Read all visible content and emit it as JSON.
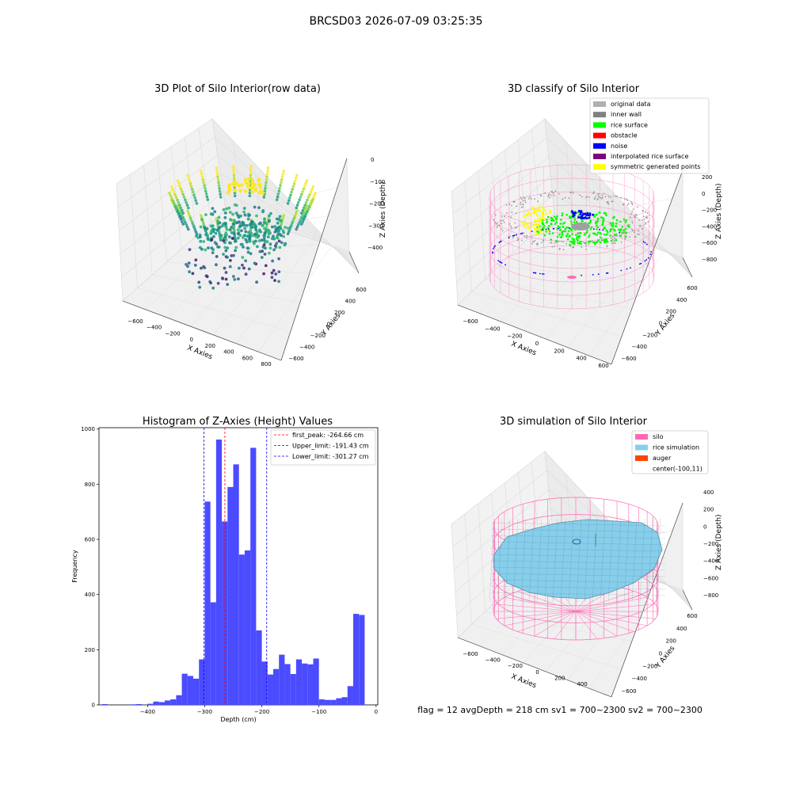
{
  "figure": {
    "suptitle": "BRCSD03 2026-07-09 03:25:35",
    "footer": "flag = 12   avgDepth = 218 cm  sv1 = 700~2300  sv2 = 700~2300"
  },
  "colors": {
    "hist_bar": "#4b4bff",
    "first_peak": "#ff0000",
    "limits": "#0000ff",
    "silo": "#ff69b4",
    "rice_simulation": "#87ceeb",
    "auger": "#ff4500",
    "original_data": "#b0b0b0",
    "inner_wall": "#808080",
    "rice_surface": "#00ff00",
    "obstacle": "#ff0000",
    "noise": "#0000ff",
    "interpolated_rice_surface": "#800080",
    "symmetric_generated_points": "#ffff00"
  },
  "panels": {
    "raw": {
      "title": "3D Plot of Silo Interior(row data)",
      "xlabel": "X Axies",
      "ylabel": "Y Axies",
      "zlabel": "Z Axies (Depth)",
      "xticks": [
        "−600",
        "−400",
        "−200",
        "0",
        "200",
        "400",
        "600",
        "800"
      ],
      "yticks": [
        "−600",
        "−400",
        "−200",
        "0",
        "200",
        "400",
        "600"
      ],
      "zticks": [
        "0",
        "−100",
        "−200",
        "−300",
        "−400"
      ]
    },
    "classify": {
      "title": "3D classify of Silo Interior",
      "xlabel": "X Axies",
      "ylabel": "Y Axies",
      "zlabel": "Z Axies (Depth)",
      "xticks": [
        "−600",
        "−400",
        "−200",
        "0",
        "200",
        "400",
        "600"
      ],
      "yticks": [
        "−600",
        "−400",
        "−200",
        "0",
        "200",
        "400",
        "600"
      ],
      "zticks": [
        "200",
        "0",
        "−200",
        "−400",
        "−600",
        "−800"
      ],
      "legend": [
        {
          "label": "original data",
          "color": "#b0b0b0"
        },
        {
          "label": "inner wall",
          "color": "#808080"
        },
        {
          "label": "rice surface",
          "color": "#00ff00"
        },
        {
          "label": "obstacle",
          "color": "#ff0000"
        },
        {
          "label": "noise",
          "color": "#0000ff"
        },
        {
          "label": "interpolated rice surface",
          "color": "#800080"
        },
        {
          "label": "symmetric generated points",
          "color": "#ffff00"
        }
      ]
    },
    "sim": {
      "title": "3D simulation of Silo Interior",
      "xlabel": "X Axies",
      "ylabel": "Y Axies",
      "zlabel": "Z Axies (Depth)",
      "xticks": [
        "−600",
        "−400",
        "−200",
        "0",
        "200",
        "400"
      ],
      "yticks": [
        "−600",
        "−400",
        "−200",
        "0",
        "200",
        "400",
        "600"
      ],
      "zticks": [
        "400",
        "200",
        "0",
        "−200",
        "−400",
        "−600",
        "−800"
      ],
      "legend": [
        {
          "label": "silo",
          "color": "#ff69b4"
        },
        {
          "label": "rice simulation",
          "color": "#87ceeb"
        },
        {
          "label": "auger",
          "color": "#ff4500"
        },
        {
          "label": "center(-100,11)",
          "color": ""
        }
      ]
    }
  },
  "chart_data": {
    "type": "bar",
    "title": "Histogram of Z-Axies (Height) Values",
    "xlabel": "Depth (cm)",
    "ylabel": "Frequency",
    "xlim": [
      -485,
      3
    ],
    "ylim": [
      0,
      1005
    ],
    "xticks": [
      -400,
      -300,
      -200,
      -100,
      0
    ],
    "yticks": [
      0,
      200,
      400,
      600,
      800,
      1000
    ],
    "bin_width": 10,
    "bins": [
      {
        "x": -475,
        "y": 3
      },
      {
        "x": -425,
        "y": 2
      },
      {
        "x": -415,
        "y": 3
      },
      {
        "x": -395,
        "y": 4
      },
      {
        "x": -385,
        "y": 12
      },
      {
        "x": -375,
        "y": 10
      },
      {
        "x": -365,
        "y": 16
      },
      {
        "x": -355,
        "y": 20
      },
      {
        "x": -345,
        "y": 35
      },
      {
        "x": -335,
        "y": 113
      },
      {
        "x": -325,
        "y": 105
      },
      {
        "x": -315,
        "y": 95
      },
      {
        "x": -305,
        "y": 165
      },
      {
        "x": -295,
        "y": 737
      },
      {
        "x": -285,
        "y": 372
      },
      {
        "x": -275,
        "y": 962
      },
      {
        "x": -265,
        "y": 665
      },
      {
        "x": -255,
        "y": 790
      },
      {
        "x": -245,
        "y": 872
      },
      {
        "x": -235,
        "y": 545
      },
      {
        "x": -225,
        "y": 560
      },
      {
        "x": -215,
        "y": 932
      },
      {
        "x": -205,
        "y": 270
      },
      {
        "x": -195,
        "y": 157
      },
      {
        "x": -185,
        "y": 110
      },
      {
        "x": -175,
        "y": 130
      },
      {
        "x": -165,
        "y": 182
      },
      {
        "x": -155,
        "y": 148
      },
      {
        "x": -145,
        "y": 112
      },
      {
        "x": -135,
        "y": 165
      },
      {
        "x": -125,
        "y": 150
      },
      {
        "x": -115,
        "y": 147
      },
      {
        "x": -105,
        "y": 168
      },
      {
        "x": -95,
        "y": 20
      },
      {
        "x": -85,
        "y": 18
      },
      {
        "x": -75,
        "y": 18
      },
      {
        "x": -65,
        "y": 24
      },
      {
        "x": -55,
        "y": 28
      },
      {
        "x": -45,
        "y": 68
      },
      {
        "x": -35,
        "y": 330
      },
      {
        "x": -25,
        "y": 326
      }
    ],
    "vlines": [
      {
        "name": "first_peak",
        "label": "first_peak: -264.66 cm",
        "x": -264.66,
        "color": "#ff0000"
      },
      {
        "name": "upper_limit",
        "label": "Upper_limit: -191.43 cm",
        "x": -191.43,
        "color": "#0000ff"
      },
      {
        "name": "lower_limit",
        "label": "Lower_limit: -301.27 cm",
        "x": -301.27,
        "color": "#0000ff"
      }
    ],
    "legend_position": "upper right"
  }
}
